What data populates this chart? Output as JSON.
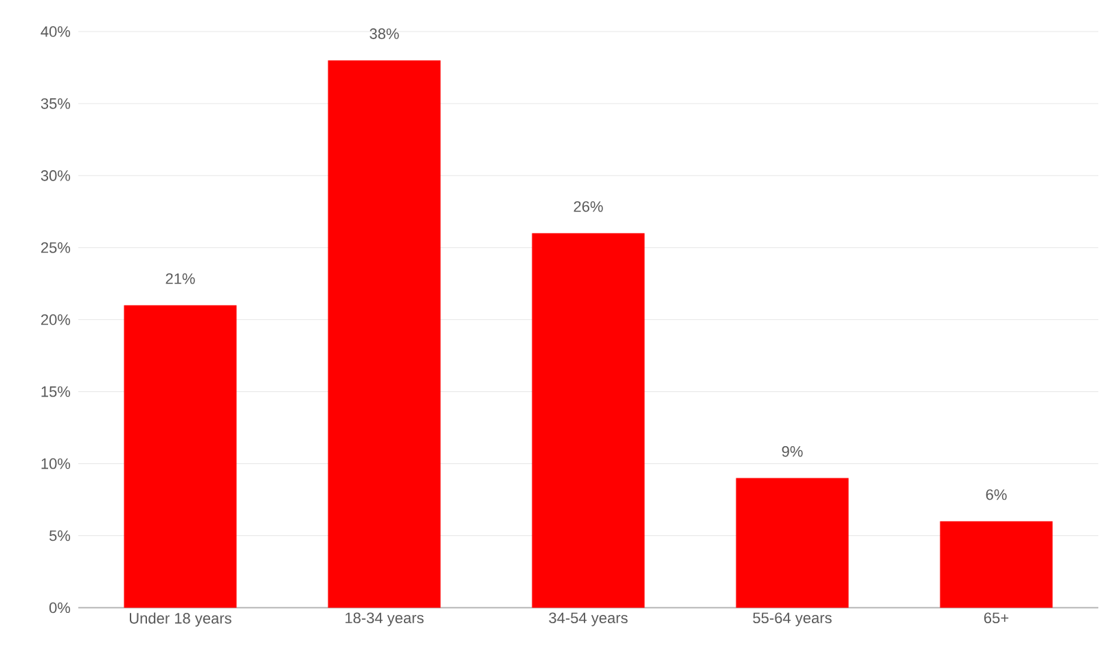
{
  "chart_data": {
    "type": "bar",
    "categories": [
      "Under 18 years",
      "18-34 years",
      "34-54 years",
      "55-64 years",
      "65+"
    ],
    "values": [
      21,
      38,
      26,
      9,
      6
    ],
    "value_labels": [
      "21%",
      "38%",
      "26%",
      "9%",
      "6%"
    ],
    "color": "#ff0000",
    "ylim": [
      0,
      40
    ],
    "yticks": [
      {
        "value": 0,
        "label": "0%"
      },
      {
        "value": 5,
        "label": "5%"
      },
      {
        "value": 10,
        "label": "10%"
      },
      {
        "value": 15,
        "label": "15%"
      },
      {
        "value": 20,
        "label": "20%"
      },
      {
        "value": 25,
        "label": "25%"
      },
      {
        "value": 30,
        "label": "30%"
      },
      {
        "value": 35,
        "label": "35%"
      },
      {
        "value": 40,
        "label": "40%"
      }
    ],
    "grid": "y"
  }
}
